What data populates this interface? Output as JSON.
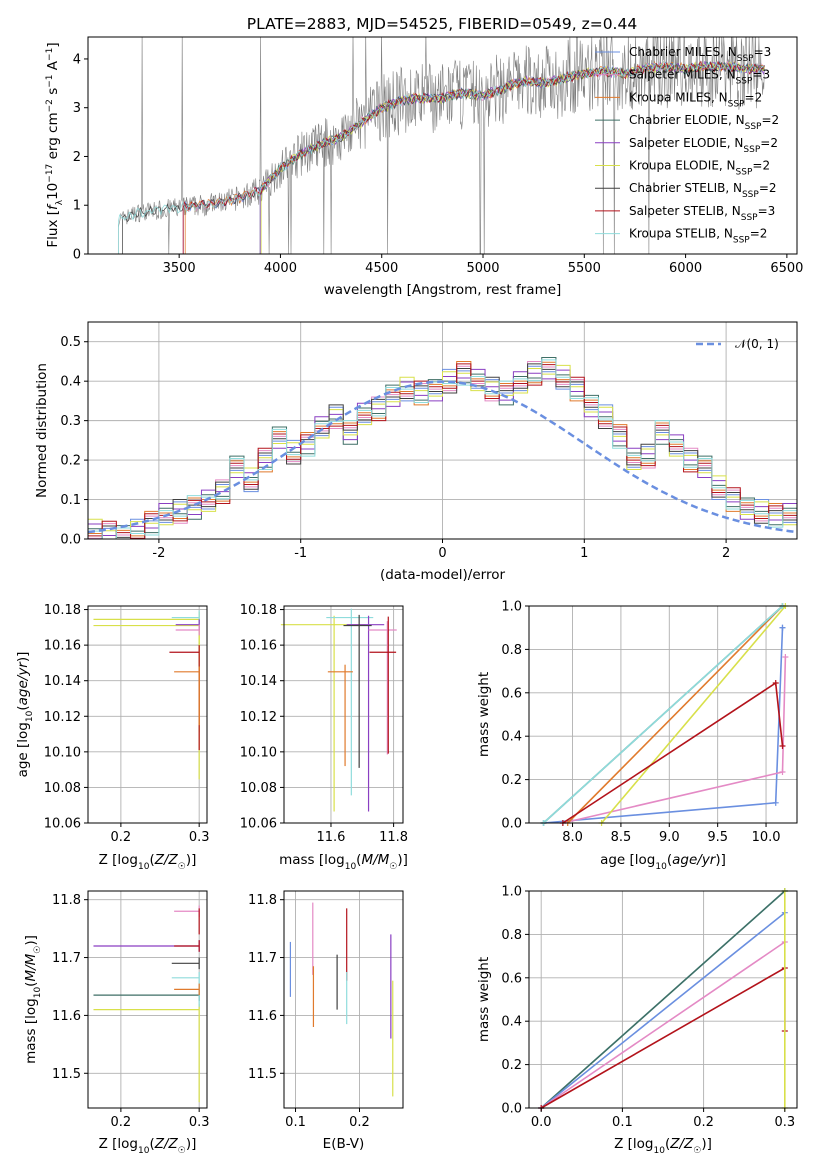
{
  "figure": {
    "title": "PLATE=2883, MJD=54525, FIBERID=0549, z=0.44"
  },
  "colors": {
    "chabrier_miles": "#6a8fe0",
    "salpeter_miles": "#e48ac5",
    "kroupa_miles": "#e07a2c",
    "chabrier_elodie": "#3f6f66",
    "salpeter_elodie": "#8a3fc2",
    "kroupa_elodie": "#d8e04a",
    "chabrier_stelib": "#404040",
    "salpeter_stelib": "#b3131b",
    "kroupa_stelib": "#8fdcdc",
    "spectrum_data": "#7f7f7f",
    "normal_curve": "#6a8fe0",
    "grid": "#b0b0b0"
  },
  "chart_data": [
    {
      "id": "spectrum",
      "type": "line",
      "title": "PLATE=2883, MJD=54525, FIBERID=0549, z=0.44",
      "xlabel": "wavelength [Angstrom, rest frame]",
      "ylabel": "Flux [f_λ 10^-17 erg cm^-2 s^-1 A^-1]",
      "xlim": [
        3050,
        6550
      ],
      "ylim": [
        0,
        4.45
      ],
      "xticks": [
        3500,
        4000,
        4500,
        5000,
        5500,
        6000,
        6500
      ],
      "yticks": [
        0,
        1,
        2,
        3,
        4
      ],
      "grid": false,
      "legend_position": "top-right",
      "legend": [
        {
          "main": "Chabrier MILES, N",
          "sub": "SSP",
          "post": "=3",
          "key": "chabrier_miles"
        },
        {
          "main": "Salpeter MILES, N",
          "sub": "SSP",
          "post": "=3",
          "key": "salpeter_miles"
        },
        {
          "main": "Kroupa MILES, N",
          "sub": "SSP",
          "post": "=2",
          "key": "kroupa_miles"
        },
        {
          "main": "Chabrier ELODIE, N",
          "sub": "SSP",
          "post": "=2",
          "key": "chabrier_elodie"
        },
        {
          "main": "Salpeter ELODIE, N",
          "sub": "SSP",
          "post": "=2",
          "key": "salpeter_elodie"
        },
        {
          "main": "Kroupa ELODIE, N",
          "sub": "SSP",
          "post": "=2",
          "key": "kroupa_elodie"
        },
        {
          "main": "Chabrier STELIB, N",
          "sub": "SSP",
          "post": "=2",
          "key": "chabrier_stelib"
        },
        {
          "main": "Salpeter STELIB, N",
          "sub": "SSP",
          "post": "=3",
          "key": "salpeter_stelib"
        },
        {
          "main": "Kroupa STELIB, N",
          "sub": "SSP",
          "post": "=2",
          "key": "kroupa_stelib"
        }
      ],
      "continuum": {
        "x": [
          3200,
          3300,
          3400,
          3500,
          3600,
          3700,
          3800,
          3900,
          4000,
          4100,
          4200,
          4300,
          4400,
          4500,
          4600,
          4700,
          4800,
          4900,
          5000,
          5100,
          5200,
          5300,
          5400,
          5500,
          5600,
          5700,
          5800,
          5900,
          6000,
          6100,
          6200,
          6300
        ],
        "y": [
          0.7,
          0.85,
          0.9,
          0.95,
          1.0,
          1.05,
          1.15,
          1.3,
          1.75,
          2.05,
          2.25,
          2.4,
          2.7,
          3.0,
          3.15,
          3.2,
          3.2,
          3.3,
          3.25,
          3.4,
          3.55,
          3.5,
          3.6,
          3.7,
          3.75,
          3.7,
          3.8,
          3.85,
          3.8,
          3.85,
          3.85,
          3.8
        ]
      }
    },
    {
      "id": "residuals",
      "type": "bar",
      "xlabel": "(data-model)/error",
      "ylabel": "Normed distribution",
      "xlim": [
        -2.5,
        2.5
      ],
      "ylim": [
        0,
        0.55
      ],
      "xticks": [
        -2,
        -1,
        0,
        1,
        2
      ],
      "yticks": [
        0.0,
        0.1,
        0.2,
        0.3,
        0.4,
        0.5
      ],
      "grid": true,
      "legend_position": "top-right",
      "legend": [
        {
          "label": "𝒩(0, 1)",
          "style": "dashed"
        }
      ],
      "bin_width": 0.1,
      "bin_start": -2.5,
      "values": [
        0.02,
        0.015,
        0.01,
        0.02,
        0.04,
        0.06,
        0.07,
        0.08,
        0.1,
        0.12,
        0.18,
        0.15,
        0.2,
        0.26,
        0.22,
        0.24,
        0.28,
        0.31,
        0.27,
        0.32,
        0.33,
        0.36,
        0.38,
        0.37,
        0.38,
        0.4,
        0.42,
        0.4,
        0.38,
        0.37,
        0.4,
        0.42,
        0.43,
        0.41,
        0.38,
        0.34,
        0.31,
        0.26,
        0.2,
        0.21,
        0.27,
        0.24,
        0.2,
        0.18,
        0.13,
        0.1,
        0.08,
        0.07,
        0.06,
        0.06
      ]
    },
    {
      "id": "age_vs_Z",
      "type": "scatter",
      "xlabel": "Z [log10(Z/Z☉)]",
      "ylabel": "age [log10(age/yr)]",
      "xlim": [
        0.158,
        0.31
      ],
      "ylim": [
        10.06,
        10.182
      ],
      "xticks": [
        0.2,
        0.3
      ],
      "yticks": [
        10.06,
        10.08,
        10.1,
        10.12,
        10.14,
        10.16,
        10.18
      ],
      "grid": true,
      "points": [
        {
          "x": 0.3,
          "y": 10.1745,
          "xerr": [
            0.135,
            0.0
          ],
          "yerr": [
            0.09,
            0.004
          ],
          "key": "kroupa_elodie"
        },
        {
          "x": 0.3,
          "y": 10.171,
          "xerr": [
            0.135,
            0.0
          ],
          "yerr": [
            0.06,
            0.003
          ],
          "key": "kroupa_elodie"
        },
        {
          "x": 0.3,
          "y": 10.1755,
          "xerr": [
            0.035,
            0.0
          ],
          "yerr": [
            0.004,
            0.004
          ],
          "key": "kroupa_stelib"
        },
        {
          "x": 0.3,
          "y": 10.1715,
          "xerr": [
            0.03,
            0.0
          ],
          "yerr": [
            0.003,
            0.003
          ],
          "key": "salpeter_elodie"
        },
        {
          "x": 0.3,
          "y": 10.1685,
          "xerr": [
            0.03,
            0.0
          ],
          "yerr": [
            0.003,
            0.003
          ],
          "key": "salpeter_miles"
        },
        {
          "x": 0.3,
          "y": 10.156,
          "xerr": [
            0.038,
            0.0
          ],
          "yerr": [
            0.055,
            0.004
          ],
          "key": "salpeter_stelib"
        },
        {
          "x": 0.3,
          "y": 10.145,
          "xerr": [
            0.032,
            0.0
          ],
          "yerr": [
            0.03,
            0.003
          ],
          "key": "kroupa_miles"
        }
      ]
    },
    {
      "id": "age_vs_mass",
      "type": "scatter",
      "xlabel": "mass [log10(M/M☉)]",
      "ylabel": "",
      "xlim": [
        11.45,
        11.83
      ],
      "ylim": [
        10.06,
        10.182
      ],
      "xticks": [
        11.6,
        11.8
      ],
      "yticks": [
        10.06,
        10.08,
        10.1,
        10.12,
        10.14,
        10.16,
        10.18
      ],
      "grid": true,
      "points": [
        {
          "x": 11.61,
          "y": 10.1715,
          "xerr": [
            0.17,
            0.1
          ],
          "yerr": [
            0.105,
            0.005
          ],
          "key": "kroupa_elodie"
        },
        {
          "x": 11.665,
          "y": 10.1755,
          "xerr": [
            0.08,
            0.07
          ],
          "yerr": [
            0.1,
            0.005
          ],
          "key": "kroupa_stelib"
        },
        {
          "x": 11.72,
          "y": 10.1715,
          "xerr": [
            0.07,
            0.05
          ],
          "yerr": [
            0.105,
            0.005
          ],
          "key": "salpeter_elodie"
        },
        {
          "x": 11.645,
          "y": 10.145,
          "xerr": [
            0.055,
            0.025
          ],
          "yerr": [
            0.053,
            0.004
          ],
          "key": "kroupa_miles"
        },
        {
          "x": 11.69,
          "y": 10.171,
          "xerr": [
            0.05,
            0.04
          ],
          "yerr": [
            0.08,
            0.006
          ],
          "key": "chabrier_stelib"
        },
        {
          "x": 11.78,
          "y": 10.1685,
          "xerr": [
            0.06,
            0.03
          ],
          "yerr": [
            0.07,
            0.005
          ],
          "key": "salpeter_miles"
        },
        {
          "x": 11.783,
          "y": 10.156,
          "xerr": [
            0.06,
            0.025
          ],
          "yerr": [
            0.057,
            0.02
          ],
          "key": "salpeter_stelib"
        }
      ]
    },
    {
      "id": "mass_weight_vs_age",
      "type": "line",
      "xlabel": "age [log10(age/yr)]",
      "ylabel": "mass weight",
      "xlim": [
        7.55,
        10.32
      ],
      "ylim": [
        0,
        1.0
      ],
      "xticks": [
        8.0,
        8.5,
        9.0,
        9.5,
        10.0
      ],
      "yticks": [
        0.0,
        0.2,
        0.4,
        0.6,
        0.8,
        1.0
      ],
      "grid": true,
      "series": [
        {
          "key": "chabrier_miles",
          "x": [
            7.7,
            10.1,
            10.17,
            10.17
          ],
          "y": [
            0.0,
            0.093,
            0.9,
            0.9
          ]
        },
        {
          "key": "salpeter_miles",
          "x": [
            7.9,
            10.17,
            10.2
          ],
          "y": [
            0.0,
            0.235,
            0.765
          ]
        },
        {
          "key": "kroupa_miles",
          "x": [
            7.95,
            10.17
          ],
          "y": [
            0.0,
            1.0
          ]
        },
        {
          "key": "chabrier_elodie",
          "x": [
            7.7,
            10.17
          ],
          "y": [
            0.0,
            1.0
          ]
        },
        {
          "key": "kroupa_elodie",
          "x": [
            8.3,
            10.2
          ],
          "y": [
            0.0,
            1.0
          ]
        },
        {
          "key": "kroupa_stelib",
          "x": [
            7.7,
            10.17
          ],
          "y": [
            0.0,
            1.0
          ]
        },
        {
          "key": "salpeter_stelib",
          "x": [
            7.9,
            10.1,
            10.17
          ],
          "y": [
            0.0,
            0.645,
            0.355
          ]
        }
      ]
    },
    {
      "id": "mass_vs_Z",
      "type": "scatter",
      "xlabel": "Z [log10(Z/Z☉)]",
      "ylabel": "mass [log10(M/M☉)]",
      "xlim": [
        0.158,
        0.31
      ],
      "ylim": [
        11.44,
        11.815
      ],
      "xticks": [
        0.2,
        0.3
      ],
      "yticks": [
        11.5,
        11.6,
        11.7,
        11.8
      ],
      "grid": true,
      "points": [
        {
          "x": 0.3,
          "y": 11.72,
          "xerr": [
            0.135,
            0.0
          ],
          "yerr": [
            0.01,
            0.01
          ],
          "key": "salpeter_elodie"
        },
        {
          "x": 0.3,
          "y": 11.635,
          "xerr": [
            0.135,
            0.0
          ],
          "yerr": [
            0.01,
            0.01
          ],
          "key": "chabrier_elodie"
        },
        {
          "x": 0.3,
          "y": 11.61,
          "xerr": [
            0.135,
            0.0
          ],
          "yerr": [
            0.16,
            0.01
          ],
          "key": "kroupa_elodie"
        },
        {
          "x": 0.3,
          "y": 11.78,
          "xerr": [
            0.032,
            0.0
          ],
          "yerr": [
            0.01,
            0.01
          ],
          "key": "salpeter_miles"
        },
        {
          "x": 0.3,
          "y": 11.72,
          "xerr": [
            0.032,
            0.0
          ],
          "yerr": [
            0.01,
            0.01
          ],
          "key": "salpeter_stelib"
        },
        {
          "x": 0.3,
          "y": 11.69,
          "xerr": [
            0.035,
            0.0
          ],
          "yerr": [
            0.01,
            0.01
          ],
          "key": "chabrier_stelib"
        },
        {
          "x": 0.3,
          "y": 11.665,
          "xerr": [
            0.035,
            0.0
          ],
          "yerr": [
            0.05,
            0.01
          ],
          "key": "kroupa_stelib"
        },
        {
          "x": 0.3,
          "y": 11.645,
          "xerr": [
            0.032,
            0.0
          ],
          "yerr": [
            0.01,
            0.01
          ],
          "key": "kroupa_miles"
        },
        {
          "x": 0.3,
          "y": 11.755,
          "xerr": [
            0.0,
            0.0
          ],
          "yerr": [
            0.015,
            0.03
          ],
          "key": "salpeter_stelib"
        }
      ]
    },
    {
      "id": "mass_vs_ebv",
      "type": "scatter",
      "xlabel": "E(B-V)",
      "ylabel": "",
      "xlim": [
        0.082,
        0.268
      ],
      "ylim": [
        11.44,
        11.815
      ],
      "xticks": [
        0.1,
        0.2
      ],
      "yticks": [
        11.5,
        11.6,
        11.7,
        11.8
      ],
      "grid": true,
      "points": [
        {
          "x": 0.092,
          "y": 11.67,
          "xerr": [
            0,
            0
          ],
          "yerr": [
            0.038,
            0.057
          ],
          "key": "chabrier_miles"
        },
        {
          "x": 0.127,
          "y": 11.73,
          "xerr": [
            0,
            0
          ],
          "yerr": [
            0.06,
            0.065
          ],
          "key": "salpeter_miles"
        },
        {
          "x": 0.128,
          "y": 11.63,
          "xerr": [
            0,
            0
          ],
          "yerr": [
            0.05,
            0.055
          ],
          "key": "kroupa_miles"
        },
        {
          "x": 0.165,
          "y": 11.66,
          "xerr": [
            0,
            0
          ],
          "yerr": [
            0.05,
            0.045
          ],
          "key": "chabrier_stelib"
        },
        {
          "x": 0.18,
          "y": 11.72,
          "xerr": [
            0,
            0
          ],
          "yerr": [
            0.06,
            0.065
          ],
          "key": "salpeter_stelib"
        },
        {
          "x": 0.18,
          "y": 11.63,
          "xerr": [
            0,
            0
          ],
          "yerr": [
            0.045,
            0.045
          ],
          "key": "kroupa_stelib"
        },
        {
          "x": 0.249,
          "y": 11.66,
          "xerr": [
            0,
            0
          ],
          "yerr": [
            0.1,
            0.08
          ],
          "key": "salpeter_elodie"
        },
        {
          "x": 0.252,
          "y": 11.56,
          "xerr": [
            0,
            0
          ],
          "yerr": [
            0.1,
            0.1
          ],
          "key": "kroupa_elodie"
        }
      ]
    },
    {
      "id": "mass_weight_vs_Z",
      "type": "line",
      "xlabel": "Z [log10(Z/Z☉)]",
      "ylabel": "mass weight",
      "xlim": [
        -0.015,
        0.315
      ],
      "ylim": [
        0,
        1.0
      ],
      "xticks": [
        0.0,
        0.1,
        0.2,
        0.3
      ],
      "yticks": [
        0.0,
        0.2,
        0.4,
        0.6,
        0.8,
        1.0
      ],
      "grid": true,
      "series": [
        {
          "key": "kroupa_stelib",
          "x": [
            0.0,
            0.3
          ],
          "y": [
            0.0,
            1.0
          ]
        },
        {
          "key": "chabrier_elodie",
          "x": [
            0.0,
            0.3
          ],
          "y": [
            0.0,
            1.0
          ]
        },
        {
          "key": "chabrier_miles",
          "x": [
            0.0,
            0.3
          ],
          "y": [
            0.0,
            0.9
          ]
        },
        {
          "key": "salpeter_miles",
          "x": [
            0.0,
            0.3
          ],
          "y": [
            0.0,
            0.765
          ]
        },
        {
          "key": "salpeter_stelib",
          "x": [
            0.0,
            0.3,
            0.3
          ],
          "y": [
            0.0,
            0.645,
            0.355
          ]
        },
        {
          "key": "kroupa_elodie",
          "x": [
            0.3,
            0.3
          ],
          "y": [
            0.0,
            1.0
          ]
        }
      ]
    }
  ]
}
